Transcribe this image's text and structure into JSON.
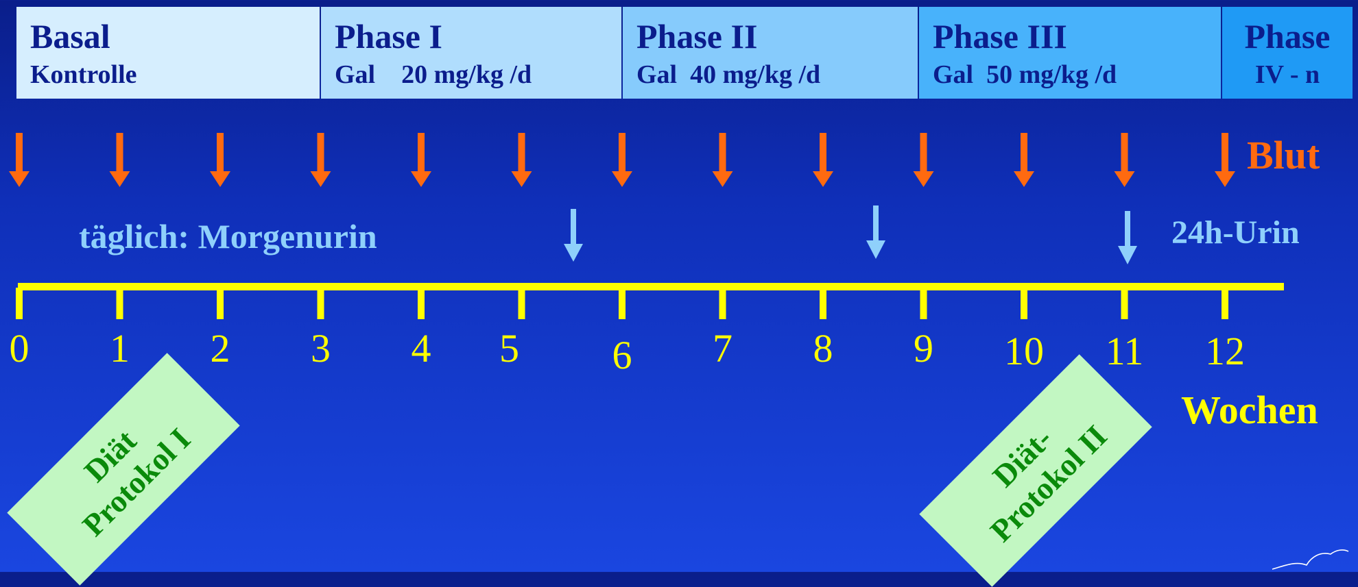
{
  "phases": [
    {
      "title": "Basal",
      "subtitle": "Kontrolle",
      "color": "#d6eefe"
    },
    {
      "title": "Phase I",
      "subtitle": "Gal    20 mg/kg /d",
      "color": "#b0ddfd"
    },
    {
      "title": "Phase II",
      "subtitle": "Gal  40 mg/kg /d",
      "color": "#86cbfc"
    },
    {
      "title": "Phase III",
      "subtitle": "Gal  50 mg/kg /d",
      "color": "#48b2fb"
    },
    {
      "title": "Phase",
      "subtitle": "IV - n",
      "color": "#1f9af5"
    }
  ],
  "blood": {
    "label": "Blut",
    "color": "#ff6a10"
  },
  "urine": {
    "morning_label": "täglich: Morgenurin",
    "daily_label": "24h-Urin",
    "color": "#8fd0fb"
  },
  "timeline": {
    "ticks": [
      "0",
      "1",
      "2",
      "3",
      "4",
      "5",
      "6",
      "7",
      "8",
      "9",
      "10",
      "11",
      "12"
    ],
    "unit_label": "Wochen",
    "color": "#ffff00"
  },
  "diet_protocols": [
    {
      "line1": "Diät",
      "line2": "Protokol I"
    },
    {
      "line1": "Diät-",
      "line2": "Protokol II"
    }
  ]
}
